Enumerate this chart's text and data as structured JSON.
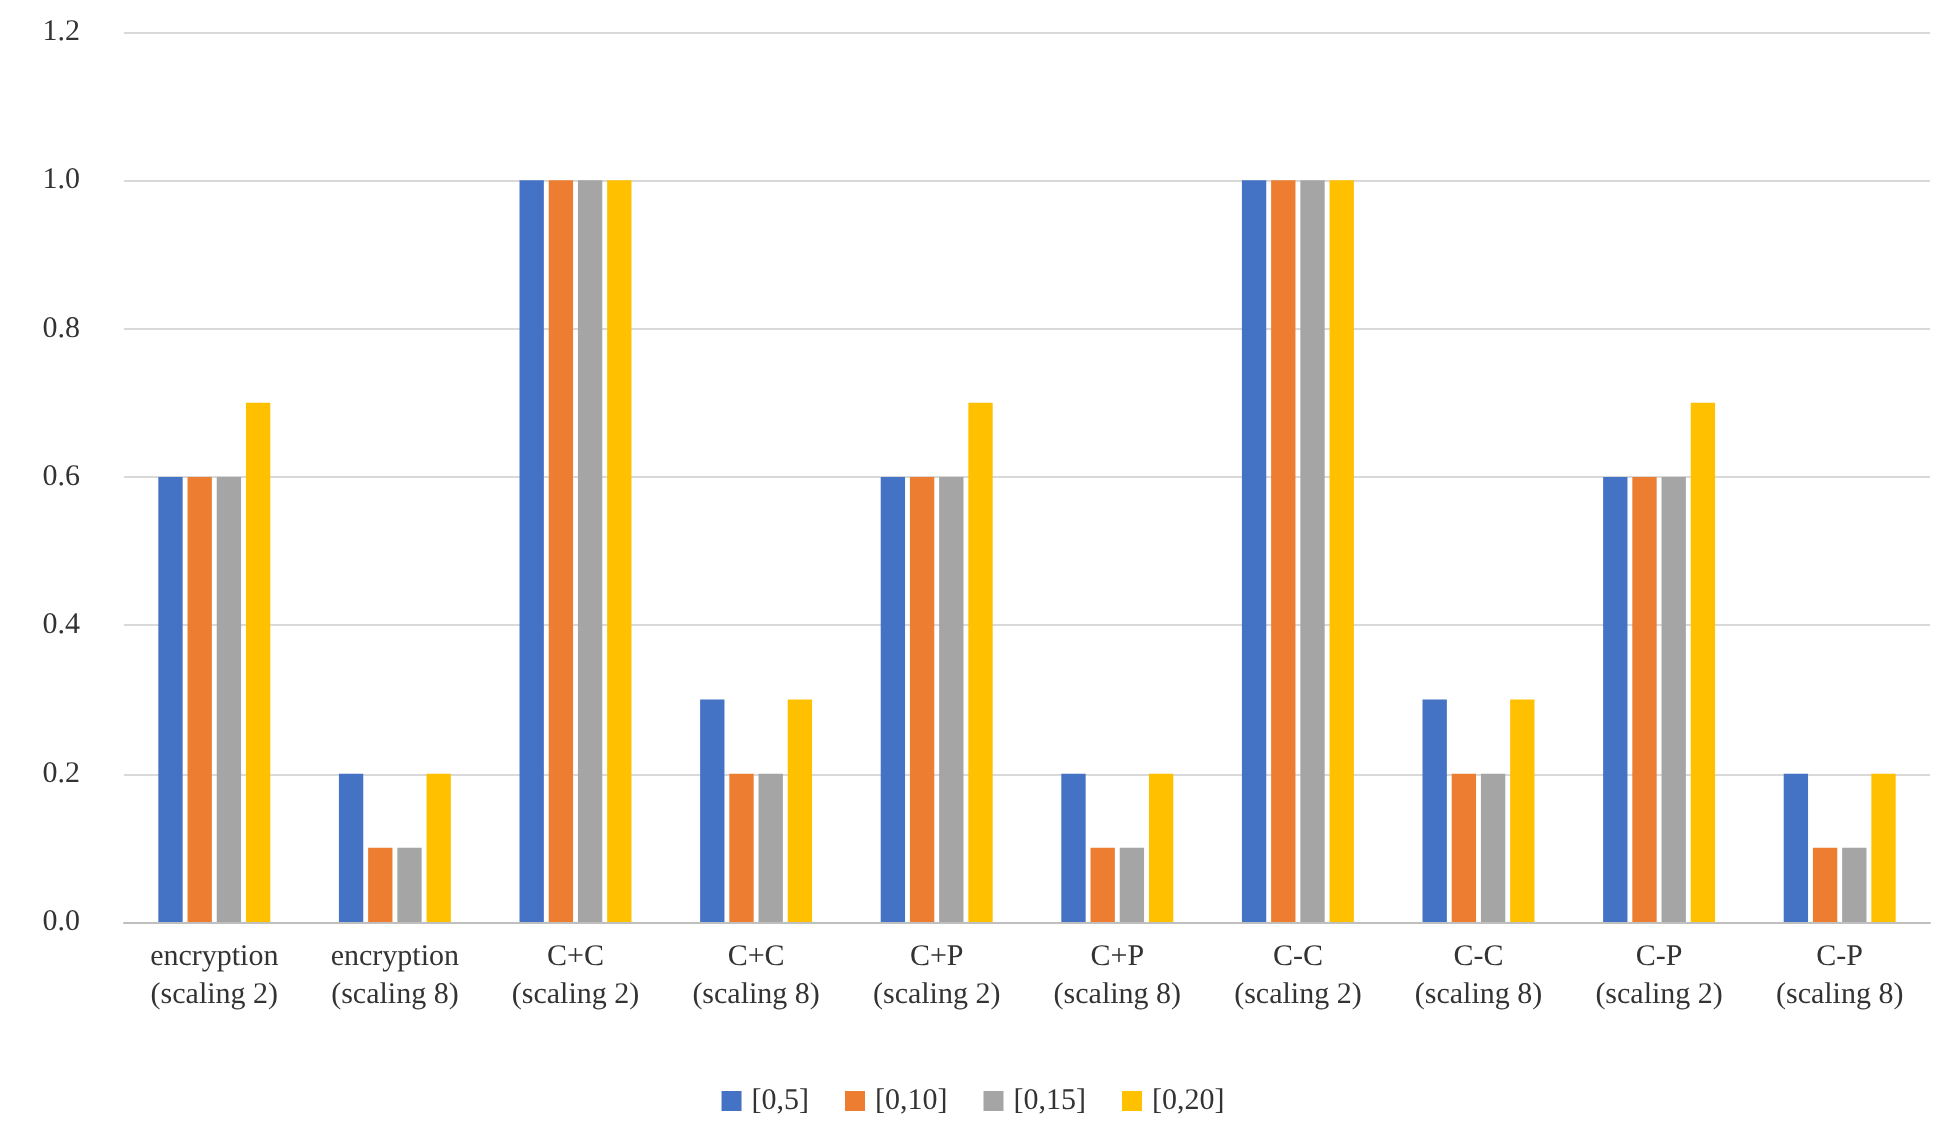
{
  "chart_data": {
    "type": "bar",
    "categories": [
      "encryption\n(scaling 2)",
      "encryption\n(scaling 8)",
      "C+C\n(scaling 2)",
      "C+C\n(scaling 8)",
      "C+P\n(scaling 2)",
      "C+P\n(scaling 8)",
      "C-C\n(scaling 2)",
      "C-C\n(scaling 8)",
      "C-P\n(scaling 2)",
      "C-P\n(scaling 8)"
    ],
    "series": [
      {
        "name": "[0,5]",
        "color": "#4472c4",
        "values": [
          0.6,
          0.2,
          1.0,
          0.3,
          0.6,
          0.2,
          1.0,
          0.3,
          0.6,
          0.2
        ]
      },
      {
        "name": "[0,10]",
        "color": "#ed7d31",
        "values": [
          0.6,
          0.1,
          1.0,
          0.2,
          0.6,
          0.1,
          1.0,
          0.2,
          0.6,
          0.1
        ]
      },
      {
        "name": "[0,15]",
        "color": "#a5a5a5",
        "values": [
          0.6,
          0.1,
          1.0,
          0.2,
          0.6,
          0.1,
          1.0,
          0.2,
          0.6,
          0.1
        ]
      },
      {
        "name": "[0,20]",
        "color": "#ffc000",
        "values": [
          0.7,
          0.2,
          1.0,
          0.3,
          0.7,
          0.2,
          1.0,
          0.3,
          0.7,
          0.2
        ]
      }
    ],
    "ylim": [
      0,
      1.2
    ],
    "yticks": [
      {
        "value": 0,
        "label": "0.0"
      },
      {
        "value": 0.2,
        "label": "0.2"
      },
      {
        "value": 0.4,
        "label": "0.4"
      },
      {
        "value": 0.6,
        "label": "0.6"
      },
      {
        "value": 0.8,
        "label": "0.8"
      },
      {
        "value": 1.0,
        "label": "1.0"
      },
      {
        "value": 1.2,
        "label": "1.2"
      }
    ],
    "grid": "y",
    "legend": "bottom"
  }
}
